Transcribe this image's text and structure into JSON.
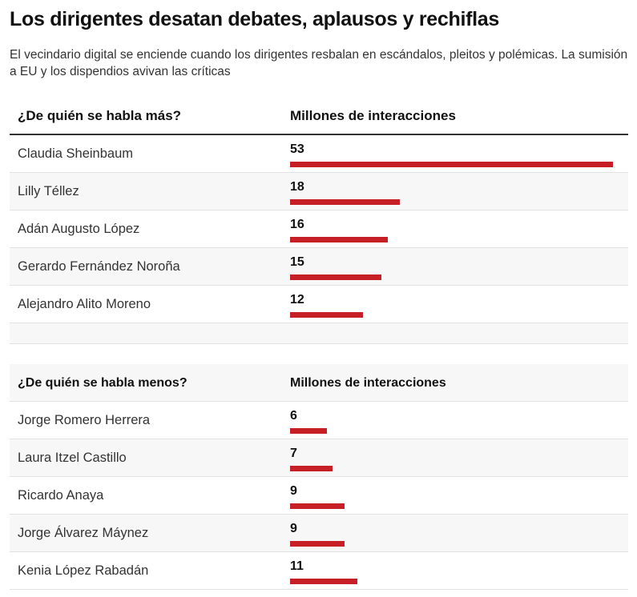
{
  "title": "Los dirigentes desatan debates, aplausos y rechiflas",
  "subtitle": "El vecindario digital se enciende cuando los dirigentes resbalan en escándalos, pleitos y polémicas. La sumisión a EU y los dispendios avivan las críticas",
  "colors": {
    "bar": "#c62026"
  },
  "chart_data": [
    {
      "type": "table",
      "header": [
        "¿De quién se habla más?",
        "Millones de interacciones"
      ],
      "categories": [
        "Claudia Sheinbaum",
        "Lilly Téllez",
        "Adán Augusto López",
        "Gerardo Fernández Noroña",
        "Alejandro Alito Moreno"
      ],
      "values": [
        53,
        18,
        16,
        15,
        12
      ],
      "xlim": [
        0,
        53
      ]
    },
    {
      "type": "table",
      "header": [
        "¿De quién se habla menos?",
        "Millones de interacciones"
      ],
      "categories": [
        "Jorge Romero Herrera",
        "Laura Itzel Castillo",
        "Ricardo Anaya",
        "Jorge Álvarez Máynez",
        "Kenia López Rabadán"
      ],
      "values": [
        6,
        7,
        9,
        9,
        11
      ],
      "xlim": [
        0,
        53
      ]
    }
  ]
}
